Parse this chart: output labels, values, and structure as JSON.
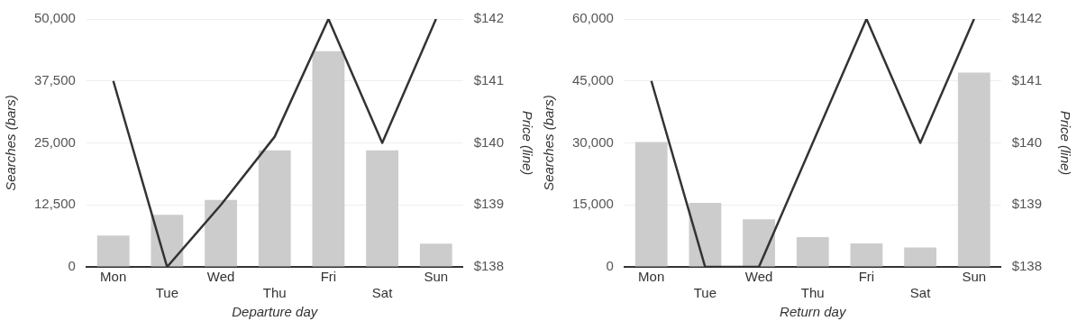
{
  "chart_data": [
    {
      "type": "bar",
      "xlabel": "Departure day",
      "ylabel": "Searches (bars)",
      "y2label": "Price (line)",
      "categories": [
        "Mon",
        "Tue",
        "Wed",
        "Thu",
        "Fri",
        "Sat",
        "Sun"
      ],
      "series": [
        {
          "color": "#cccccc",
          "values": [
            6300,
            10500,
            13500,
            23500,
            43500,
            23500,
            4700
          ]
        },
        {
          "type": "line",
          "axis": "y2",
          "color": "#333333",
          "values": [
            141,
            138,
            139,
            140.1,
            142,
            140,
            142
          ]
        }
      ],
      "ylim": [
        0,
        50000
      ],
      "yticks": [
        0,
        {
          "value": 12500,
          "label": "12,500"
        },
        {
          "value": 25000,
          "label": "25,000"
        },
        {
          "value": 37500,
          "label": "37,500"
        },
        {
          "value": 50000,
          "label": "50,000"
        }
      ],
      "y2lim": [
        138,
        142
      ],
      "y2ticks": [
        {
          "value": 138,
          "label": "$138"
        },
        {
          "value": 139,
          "label": "$139"
        },
        {
          "value": 140,
          "label": "$140"
        },
        {
          "value": 141,
          "label": "$141"
        },
        {
          "value": 142,
          "label": "$142"
        }
      ],
      "grid": "y",
      "legend": false,
      "marker": "none"
    },
    {
      "type": "bar",
      "xlabel": "Return day",
      "ylabel": "Searches (bars)",
      "y2label": "Price (line)",
      "categories": [
        "Mon",
        "Tue",
        "Wed",
        "Thu",
        "Fri",
        "Sat",
        "Sun"
      ],
      "series": [
        {
          "color": "#cccccc",
          "values": [
            30200,
            15500,
            11500,
            7200,
            5700,
            4700,
            47000
          ]
        },
        {
          "type": "line",
          "axis": "y2",
          "color": "#333333",
          "values": [
            141,
            138,
            138,
            140,
            142,
            140,
            142
          ]
        }
      ],
      "ylim": [
        0,
        60000
      ],
      "yticks": [
        0,
        {
          "value": 15000,
          "label": "15,000"
        },
        {
          "value": 30000,
          "label": "30,000"
        },
        {
          "value": 45000,
          "label": "45,000"
        },
        {
          "value": 60000,
          "label": "60,000"
        }
      ],
      "y2lim": [
        138,
        142
      ],
      "y2ticks": [
        {
          "value": 138,
          "label": "$138"
        },
        {
          "value": 139,
          "label": "$139"
        },
        {
          "value": 140,
          "label": "$140"
        },
        {
          "value": 141,
          "label": "$141"
        },
        {
          "value": 142,
          "label": "$142"
        }
      ],
      "grid": "y",
      "legend": false,
      "marker": "none"
    }
  ]
}
